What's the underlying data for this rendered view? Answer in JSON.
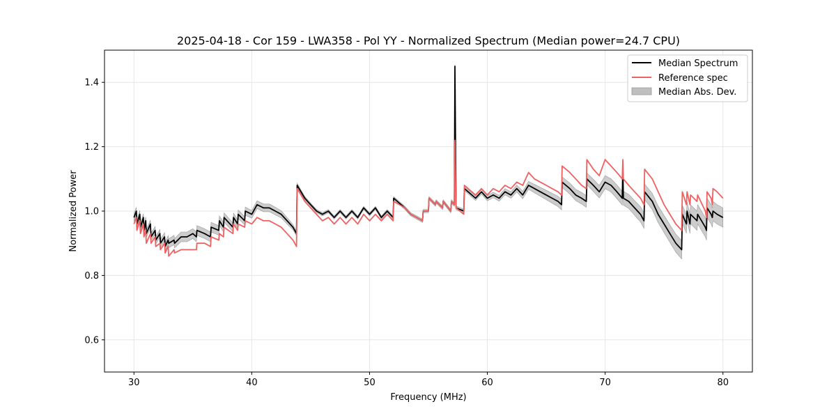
{
  "chart_data": {
    "type": "line",
    "title": "2025-04-18 - Cor 159 - LWA358 - Pol YY - Normalized Spectrum (Median power=24.7 CPU)",
    "xlabel": "Frequency (MHz)",
    "ylabel": "Normalized Power",
    "xlim": [
      27.5,
      82.5
    ],
    "ylim": [
      0.5,
      1.5
    ],
    "xticks": [
      30,
      40,
      50,
      60,
      70,
      80
    ],
    "yticks": [
      0.6,
      0.8,
      1.0,
      1.2,
      1.4
    ],
    "xtick_labels": [
      "30",
      "40",
      "50",
      "60",
      "70",
      "80"
    ],
    "ytick_labels": [
      "0.6",
      "0.8",
      "1.0",
      "1.2",
      "1.4"
    ],
    "grid": true,
    "legend_position": "top-right",
    "colors": {
      "median": "#000000",
      "reference": "#f06060",
      "mad_fill": "#bfbfbf",
      "mad_edge": "#999999"
    },
    "series": [
      {
        "name": "Median Spectrum",
        "x": [
          30.0,
          30.2,
          30.25,
          30.5,
          30.55,
          30.8,
          30.85,
          31.0,
          31.05,
          31.4,
          31.45,
          31.8,
          31.85,
          32.2,
          32.25,
          32.6,
          32.65,
          32.9,
          32.95,
          33.4,
          33.45,
          34.0,
          34.5,
          35.0,
          35.3,
          35.35,
          36.0,
          36.5,
          36.55,
          37.2,
          37.25,
          37.6,
          37.65,
          38.4,
          38.45,
          38.8,
          38.85,
          39.4,
          39.45,
          40.0,
          40.45,
          41.0,
          41.5,
          42.0,
          42.5,
          43.0,
          43.5,
          43.8,
          43.85,
          44.5,
          45.0,
          45.5,
          46.0,
          46.5,
          47.0,
          47.5,
          48.0,
          48.5,
          49.0,
          49.5,
          50.0,
          50.5,
          51.0,
          51.5,
          52.0,
          52.05,
          53.0,
          53.5,
          54.0,
          54.5,
          54.55,
          55.0,
          55.05,
          55.6,
          55.65,
          56.2,
          56.25,
          56.9,
          56.95,
          57.2,
          57.25,
          57.3,
          57.35,
          58.0,
          58.05,
          59.0,
          59.5,
          60.0,
          60.5,
          61.0,
          61.5,
          62.0,
          62.5,
          63.0,
          63.5,
          64.0,
          64.5,
          65.0,
          65.5,
          66.0,
          66.3,
          66.35,
          67.0,
          67.5,
          68.0,
          68.4,
          68.45,
          69.0,
          69.5,
          70.0,
          70.5,
          71.0,
          71.45,
          71.5,
          71.55,
          72.0,
          72.5,
          73.0,
          73.3,
          73.35,
          74.0,
          74.5,
          75.0,
          75.5,
          76.0,
          76.5,
          76.55,
          76.9,
          76.95,
          77.2,
          77.25,
          77.8,
          77.85,
          78.5,
          78.6,
          78.65,
          79.0,
          79.1,
          79.15,
          79.5,
          80.0
        ],
        "values": [
          0.98,
          1.0,
          0.96,
          0.99,
          0.95,
          0.98,
          0.94,
          0.97,
          0.93,
          0.96,
          0.92,
          0.94,
          0.91,
          0.93,
          0.9,
          0.92,
          0.89,
          0.91,
          0.9,
          0.91,
          0.9,
          0.92,
          0.92,
          0.93,
          0.92,
          0.94,
          0.93,
          0.92,
          0.95,
          0.94,
          0.97,
          0.95,
          0.98,
          0.95,
          0.98,
          0.96,
          0.99,
          0.97,
          1.0,
          0.99,
          1.02,
          1.01,
          1.01,
          1.0,
          0.99,
          0.97,
          0.95,
          0.93,
          1.08,
          1.04,
          1.02,
          1.0,
          0.99,
          1.0,
          0.98,
          1.0,
          0.98,
          1.0,
          0.98,
          1.01,
          0.99,
          1.01,
          0.98,
          1.0,
          0.98,
          1.04,
          1.01,
          0.99,
          0.98,
          0.97,
          1.0,
          1.0,
          1.04,
          1.02,
          1.03,
          1.01,
          1.03,
          1.0,
          1.03,
          1.02,
          1.45,
          1.2,
          1.01,
          1.0,
          1.07,
          1.04,
          1.06,
          1.04,
          1.05,
          1.04,
          1.06,
          1.05,
          1.07,
          1.05,
          1.08,
          1.07,
          1.06,
          1.05,
          1.04,
          1.03,
          1.02,
          1.09,
          1.07,
          1.05,
          1.04,
          1.03,
          1.1,
          1.08,
          1.06,
          1.09,
          1.08,
          1.06,
          1.04,
          1.14,
          1.04,
          1.03,
          1.01,
          0.99,
          0.97,
          1.06,
          1.03,
          0.99,
          0.96,
          0.93,
          0.9,
          0.88,
          0.99,
          0.96,
          1.0,
          0.96,
          0.99,
          0.97,
          0.99,
          0.95,
          0.94,
          1.01,
          0.99,
          0.98,
          1.0,
          0.99,
          0.98
        ]
      },
      {
        "name": "Reference spec",
        "x": [
          30.0,
          30.2,
          30.25,
          30.5,
          30.55,
          30.8,
          30.85,
          31.0,
          31.05,
          31.4,
          31.45,
          31.8,
          31.85,
          32.2,
          32.25,
          32.6,
          32.65,
          32.9,
          32.95,
          33.4,
          33.45,
          34.0,
          34.5,
          35.0,
          35.3,
          35.35,
          36.0,
          36.5,
          36.55,
          37.2,
          37.25,
          37.6,
          37.65,
          38.4,
          38.45,
          38.8,
          38.85,
          39.4,
          39.45,
          40.0,
          40.45,
          41.0,
          41.5,
          42.0,
          42.5,
          43.0,
          43.5,
          43.8,
          43.85,
          44.5,
          45.0,
          45.5,
          46.0,
          46.5,
          47.0,
          47.5,
          48.0,
          48.5,
          49.0,
          49.5,
          50.0,
          50.5,
          51.0,
          51.5,
          52.0,
          52.05,
          53.0,
          53.5,
          54.0,
          54.5,
          54.55,
          55.0,
          55.05,
          55.6,
          55.65,
          56.2,
          56.25,
          56.9,
          56.95,
          57.2,
          57.25,
          57.3,
          57.35,
          58.0,
          58.05,
          59.0,
          59.5,
          60.0,
          60.5,
          61.0,
          61.5,
          62.0,
          62.5,
          63.0,
          63.5,
          64.0,
          64.5,
          65.0,
          65.5,
          66.0,
          66.3,
          66.35,
          67.0,
          67.5,
          68.0,
          68.4,
          68.45,
          69.0,
          69.5,
          70.0,
          70.5,
          71.0,
          71.45,
          71.5,
          71.55,
          72.0,
          72.5,
          73.0,
          73.3,
          73.35,
          74.0,
          74.5,
          75.0,
          75.5,
          76.0,
          76.5,
          76.55,
          76.9,
          76.95,
          77.2,
          77.25,
          77.8,
          77.85,
          78.5,
          78.6,
          78.65,
          79.0,
          79.1,
          79.15,
          79.5,
          80.0
        ],
        "values": [
          0.96,
          0.98,
          0.94,
          0.97,
          0.93,
          0.96,
          0.92,
          0.94,
          0.9,
          0.93,
          0.9,
          0.92,
          0.89,
          0.9,
          0.88,
          0.9,
          0.87,
          0.89,
          0.86,
          0.88,
          0.87,
          0.88,
          0.88,
          0.88,
          0.88,
          0.9,
          0.9,
          0.89,
          0.92,
          0.91,
          0.93,
          0.92,
          0.95,
          0.93,
          0.96,
          0.94,
          0.96,
          0.95,
          0.97,
          0.96,
          0.98,
          0.97,
          0.97,
          0.96,
          0.95,
          0.93,
          0.91,
          0.89,
          1.07,
          1.03,
          1.01,
          0.99,
          0.97,
          0.98,
          0.96,
          0.98,
          0.96,
          0.98,
          0.96,
          0.99,
          0.97,
          0.99,
          0.97,
          0.99,
          0.97,
          1.03,
          1.01,
          0.99,
          0.98,
          0.97,
          1.0,
          1.0,
          1.04,
          1.02,
          1.03,
          1.01,
          1.03,
          1.0,
          1.03,
          1.02,
          1.22,
          1.1,
          1.01,
          0.99,
          1.08,
          1.05,
          1.07,
          1.05,
          1.07,
          1.06,
          1.08,
          1.07,
          1.09,
          1.08,
          1.12,
          1.1,
          1.09,
          1.08,
          1.07,
          1.06,
          1.05,
          1.14,
          1.12,
          1.1,
          1.08,
          1.07,
          1.16,
          1.13,
          1.11,
          1.16,
          1.14,
          1.12,
          1.1,
          1.16,
          1.1,
          1.08,
          1.06,
          1.04,
          1.02,
          1.13,
          1.1,
          1.06,
          1.02,
          0.99,
          0.96,
          0.94,
          1.06,
          1.02,
          1.06,
          1.02,
          1.05,
          1.03,
          1.05,
          1.0,
          0.98,
          1.06,
          1.04,
          1.02,
          1.07,
          1.06,
          1.04
        ]
      },
      {
        "name": "Median Abs. Dev.",
        "x": [
          30.0,
          31.0,
          32.0,
          33.0,
          34.0,
          35.0,
          36.0,
          37.0,
          38.0,
          39.0,
          40.0,
          41.0,
          42.0,
          43.0,
          44.0,
          45.0,
          50.0,
          55.0,
          58.0,
          60.0,
          62.0,
          64.0,
          66.0,
          68.0,
          70.0,
          72.0,
          74.0,
          76.0,
          78.0,
          80.0
        ],
        "values": [
          0.012,
          0.012,
          0.012,
          0.014,
          0.015,
          0.015,
          0.015,
          0.015,
          0.014,
          0.013,
          0.012,
          0.012,
          0.012,
          0.01,
          0.006,
          0.005,
          0.005,
          0.005,
          0.006,
          0.008,
          0.01,
          0.013,
          0.016,
          0.018,
          0.02,
          0.022,
          0.025,
          0.028,
          0.03,
          0.03
        ]
      }
    ],
    "legend": [
      "Median Spectrum",
      "Reference spec",
      "Median Abs. Dev."
    ]
  }
}
